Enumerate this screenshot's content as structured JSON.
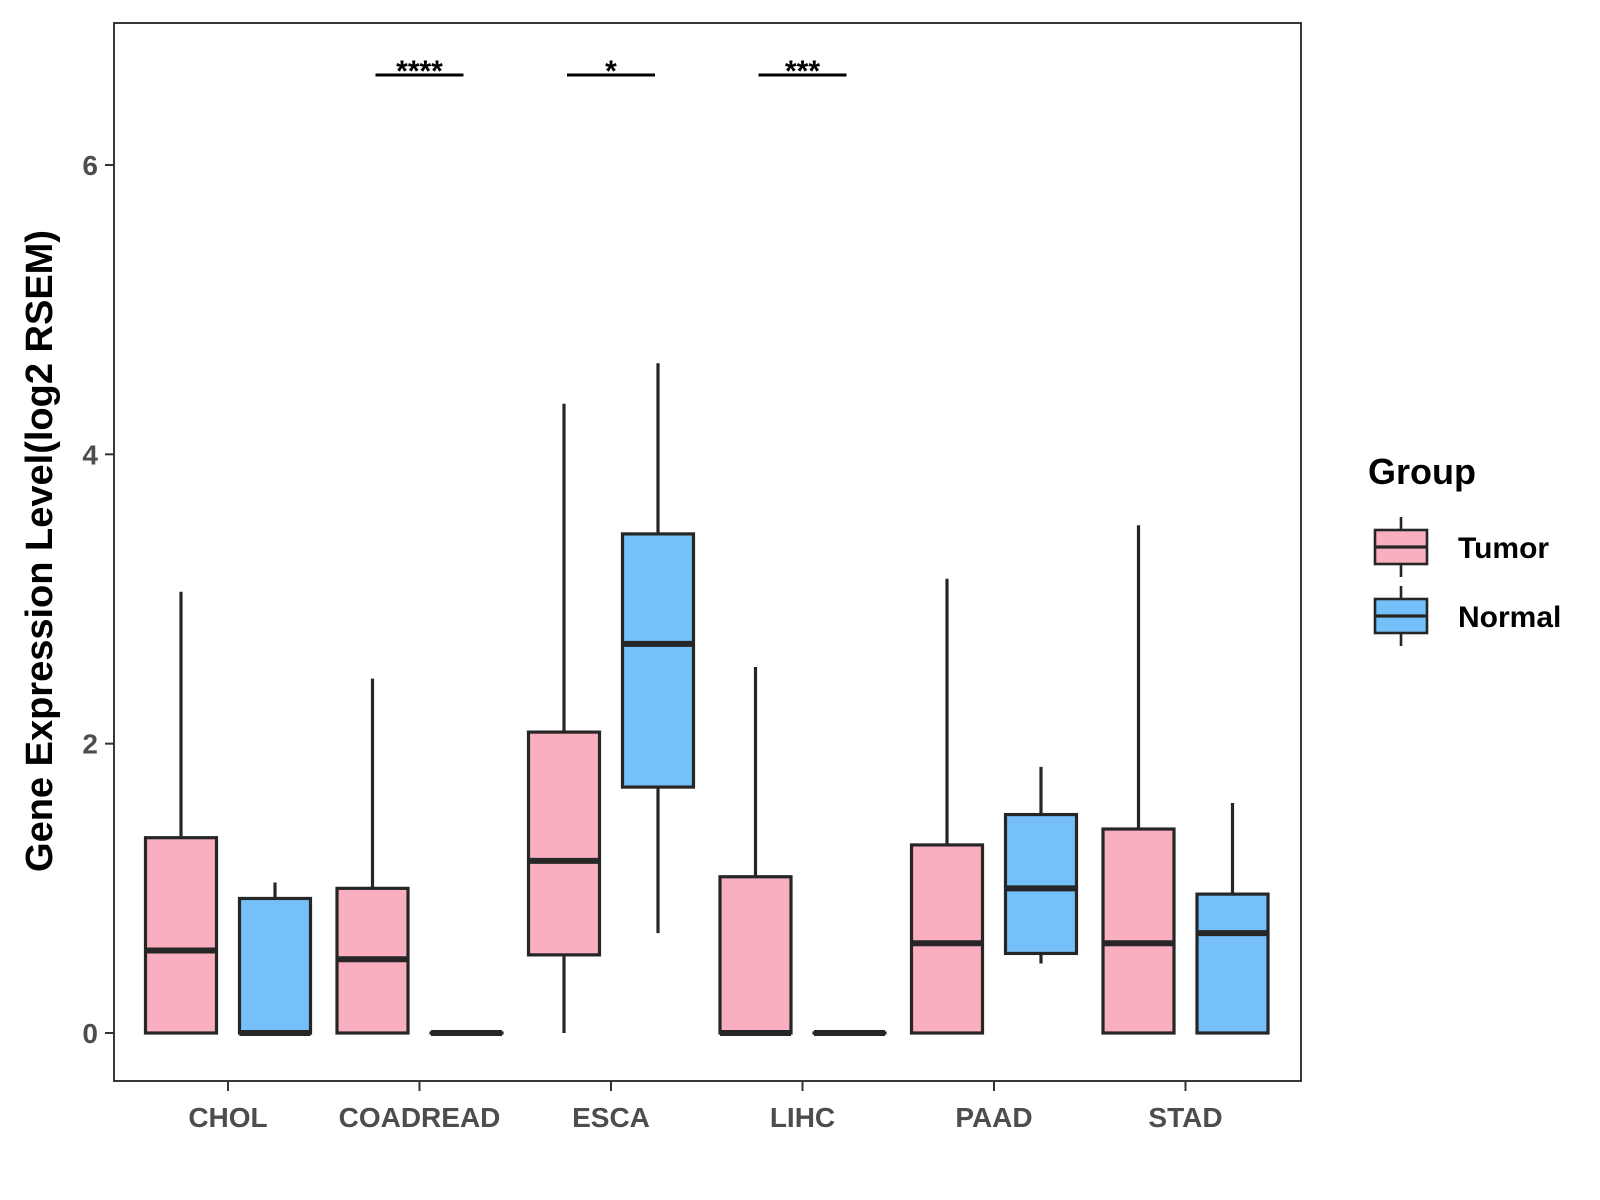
{
  "chart_data": {
    "type": "boxplot",
    "title": "",
    "xlabel": "",
    "ylabel": "Gene Expression Level(log2 RSEM)",
    "ylim": [
      -0.32,
      6.98
    ],
    "yticks": [
      "0",
      "2",
      "4",
      "6"
    ],
    "categories": [
      "CHOL",
      "COADREAD",
      "ESCA",
      "LIHC",
      "PAAD",
      "STAD"
    ],
    "legend": {
      "title": "Group",
      "position": "right",
      "entries": [
        {
          "name": "Tumor",
          "color": "#f9afbf"
        },
        {
          "name": "Normal",
          "color": "#75c0f8"
        }
      ]
    },
    "series": [
      {
        "name": "Tumor",
        "color": "#f9afbf",
        "boxes": [
          {
            "category": "CHOL",
            "whisker_low": 0,
            "q1": 0,
            "median": 0.57,
            "q3": 1.35,
            "whisker_high": 3.05
          },
          {
            "category": "COADREAD",
            "whisker_low": 0,
            "q1": 0,
            "median": 0.51,
            "q3": 1.0,
            "whisker_high": 2.45
          },
          {
            "category": "ESCA",
            "whisker_low": 0,
            "q1": 0.54,
            "median": 1.19,
            "q3": 2.08,
            "whisker_high": 4.35
          },
          {
            "category": "LIHC",
            "whisker_low": 0,
            "q1": 0,
            "median": 0,
            "q3": 1.08,
            "whisker_high": 2.53
          },
          {
            "category": "PAAD",
            "whisker_low": 0,
            "q1": 0,
            "median": 0.62,
            "q3": 1.3,
            "whisker_high": 3.14
          },
          {
            "category": "STAD",
            "whisker_low": 0,
            "q1": 0,
            "median": 0.62,
            "q3": 1.41,
            "whisker_high": 3.51
          }
        ]
      },
      {
        "name": "Normal",
        "color": "#75c0f8",
        "boxes": [
          {
            "category": "CHOL",
            "whisker_low": 0,
            "q1": 0,
            "median": 0,
            "q3": 0.93,
            "whisker_high": 1.04
          },
          {
            "category": "COADREAD",
            "whisker_low": 0,
            "q1": 0,
            "median": 0,
            "q3": 0,
            "whisker_high": 0
          },
          {
            "category": "ESCA",
            "whisker_low": 0.69,
            "q1": 1.7,
            "median": 2.69,
            "q3": 3.45,
            "whisker_high": 4.63
          },
          {
            "category": "LIHC",
            "whisker_low": 0,
            "q1": 0,
            "median": 0,
            "q3": 0,
            "whisker_high": 0
          },
          {
            "category": "PAAD",
            "whisker_low": 0.48,
            "q1": 0.55,
            "median": 1.0,
            "q3": 1.51,
            "whisker_high": 1.84
          },
          {
            "category": "STAD",
            "whisker_low": 0,
            "q1": 0,
            "median": 0.69,
            "q3": 0.96,
            "whisker_high": 1.59
          }
        ]
      }
    ],
    "significance": [
      {
        "category": "COADREAD",
        "label": "****"
      },
      {
        "category": "ESCA",
        "label": "*"
      },
      {
        "category": "LIHC",
        "label": "***"
      }
    ],
    "grid": false
  }
}
